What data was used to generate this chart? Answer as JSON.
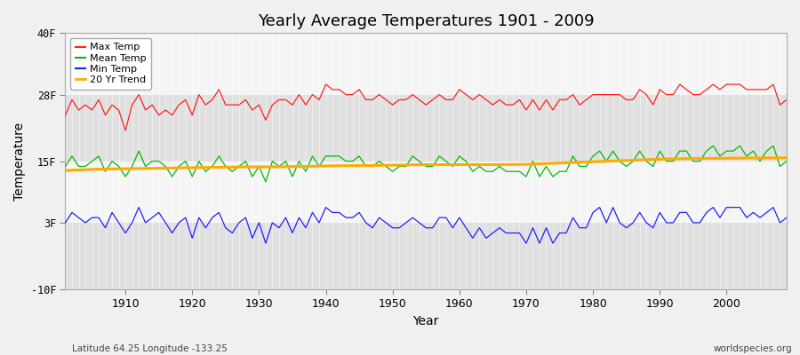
{
  "title": "Yearly Average Temperatures 1901 - 2009",
  "xlabel": "Year",
  "ylabel": "Temperature",
  "xlim": [
    1901,
    2009
  ],
  "ylim": [
    -10,
    40
  ],
  "yticks": [
    -10,
    3,
    15,
    28,
    40
  ],
  "ytick_labels": [
    "-10F",
    "3F",
    "15F",
    "28F",
    "40F"
  ],
  "xticks": [
    1910,
    1920,
    1930,
    1940,
    1950,
    1960,
    1970,
    1980,
    1990,
    2000
  ],
  "bg_color": "#f0f0f0",
  "plot_bg_color": "#e8e8e8",
  "band_colors": [
    "#e0e0e0",
    "#f5f5f5"
  ],
  "grid_color": "#cccccc",
  "line_colors": {
    "max": "#ff2020",
    "mean": "#00bb00",
    "min": "#2020ff",
    "trend": "#ffaa00"
  },
  "legend_labels": [
    "Max Temp",
    "Mean Temp",
    "Min Temp",
    "20 Yr Trend"
  ],
  "footnote_left": "Latitude 64.25 Longitude -133.25",
  "footnote_right": "worldspecies.org",
  "years": [
    1901,
    1902,
    1903,
    1904,
    1905,
    1906,
    1907,
    1908,
    1909,
    1910,
    1911,
    1912,
    1913,
    1914,
    1915,
    1916,
    1917,
    1918,
    1919,
    1920,
    1921,
    1922,
    1923,
    1924,
    1925,
    1926,
    1927,
    1928,
    1929,
    1930,
    1931,
    1932,
    1933,
    1934,
    1935,
    1936,
    1937,
    1938,
    1939,
    1940,
    1941,
    1942,
    1943,
    1944,
    1945,
    1946,
    1947,
    1948,
    1949,
    1950,
    1951,
    1952,
    1953,
    1954,
    1955,
    1956,
    1957,
    1958,
    1959,
    1960,
    1961,
    1962,
    1963,
    1964,
    1965,
    1966,
    1967,
    1968,
    1969,
    1970,
    1971,
    1972,
    1973,
    1974,
    1975,
    1976,
    1977,
    1978,
    1979,
    1980,
    1981,
    1982,
    1983,
    1984,
    1985,
    1986,
    1987,
    1988,
    1989,
    1990,
    1991,
    1992,
    1993,
    1994,
    1995,
    1996,
    1997,
    1998,
    1999,
    2000,
    2001,
    2002,
    2003,
    2004,
    2005,
    2006,
    2007,
    2008,
    2009
  ],
  "max_temp": [
    24,
    27,
    25,
    26,
    25,
    27,
    24,
    26,
    25,
    21,
    26,
    28,
    25,
    26,
    24,
    25,
    24,
    26,
    27,
    24,
    28,
    26,
    27,
    29,
    26,
    26,
    26,
    27,
    25,
    26,
    23,
    26,
    27,
    27,
    26,
    28,
    26,
    28,
    27,
    30,
    29,
    29,
    28,
    28,
    29,
    27,
    27,
    28,
    27,
    26,
    27,
    27,
    28,
    27,
    26,
    27,
    28,
    27,
    27,
    29,
    28,
    27,
    28,
    27,
    26,
    27,
    26,
    26,
    27,
    25,
    27,
    25,
    27,
    25,
    27,
    27,
    28,
    26,
    27,
    28,
    28,
    28,
    28,
    28,
    27,
    27,
    29,
    28,
    26,
    29,
    28,
    28,
    30,
    29,
    28,
    28,
    29,
    30,
    29,
    30,
    30,
    30,
    29,
    29,
    29,
    29,
    30,
    26,
    27
  ],
  "mean_temp": [
    14,
    16,
    14,
    14,
    15,
    16,
    13,
    15,
    14,
    12,
    14,
    17,
    14,
    15,
    15,
    14,
    12,
    14,
    15,
    12,
    15,
    13,
    14,
    16,
    14,
    13,
    14,
    15,
    12,
    14,
    11,
    15,
    14,
    15,
    12,
    15,
    13,
    16,
    14,
    16,
    16,
    16,
    15,
    15,
    16,
    14,
    14,
    15,
    14,
    13,
    14,
    14,
    16,
    15,
    14,
    14,
    16,
    15,
    14,
    16,
    15,
    13,
    14,
    13,
    13,
    14,
    13,
    13,
    13,
    12,
    15,
    12,
    14,
    12,
    13,
    13,
    16,
    14,
    14,
    16,
    17,
    15,
    17,
    15,
    14,
    15,
    17,
    15,
    14,
    17,
    15,
    15,
    17,
    17,
    15,
    15,
    17,
    18,
    16,
    17,
    17,
    18,
    16,
    17,
    15,
    17,
    18,
    14,
    15
  ],
  "min_temp": [
    3,
    5,
    4,
    3,
    4,
    4,
    2,
    5,
    3,
    1,
    3,
    6,
    3,
    4,
    5,
    3,
    1,
    3,
    4,
    0,
    4,
    2,
    4,
    5,
    2,
    1,
    3,
    4,
    0,
    3,
    -1,
    3,
    2,
    4,
    1,
    4,
    2,
    5,
    3,
    6,
    5,
    5,
    4,
    4,
    5,
    3,
    2,
    4,
    3,
    2,
    2,
    3,
    4,
    3,
    2,
    2,
    4,
    4,
    2,
    4,
    2,
    0,
    2,
    0,
    1,
    2,
    1,
    1,
    1,
    -1,
    2,
    -1,
    2,
    -1,
    1,
    1,
    4,
    2,
    2,
    5,
    6,
    3,
    6,
    3,
    2,
    3,
    5,
    3,
    2,
    5,
    3,
    3,
    5,
    5,
    3,
    3,
    5,
    6,
    4,
    6,
    6,
    6,
    4,
    5,
    4,
    5,
    6,
    3,
    4
  ],
  "trend": [
    13.2,
    13.25,
    13.3,
    13.35,
    13.4,
    13.45,
    13.48,
    13.5,
    13.52,
    13.54,
    13.56,
    13.58,
    13.6,
    13.62,
    13.64,
    13.66,
    13.68,
    13.7,
    13.72,
    13.74,
    13.76,
    13.78,
    13.8,
    13.82,
    13.84,
    13.86,
    13.88,
    13.9,
    13.9,
    13.9,
    13.9,
    13.9,
    13.92,
    13.94,
    13.96,
    13.98,
    14.0,
    14.02,
    14.05,
    14.08,
    14.1,
    14.12,
    14.14,
    14.15,
    14.16,
    14.17,
    14.18,
    14.2,
    14.22,
    14.24,
    14.26,
    14.28,
    14.3,
    14.32,
    14.34,
    14.34,
    14.34,
    14.34,
    14.34,
    14.34,
    14.34,
    14.34,
    14.34,
    14.34,
    14.34,
    14.35,
    14.36,
    14.37,
    14.38,
    14.4,
    14.45,
    14.5,
    14.55,
    14.6,
    14.65,
    14.7,
    14.75,
    14.8,
    14.85,
    14.9,
    14.95,
    15.0,
    15.05,
    15.1,
    15.15,
    15.2,
    15.25,
    15.3,
    15.35,
    15.4,
    15.45,
    15.48,
    15.5,
    15.52,
    15.54,
    15.55,
    15.56,
    15.57,
    15.58,
    15.59,
    15.6,
    15.61,
    15.62,
    15.63,
    15.64,
    15.65,
    15.66,
    15.67,
    15.68
  ]
}
